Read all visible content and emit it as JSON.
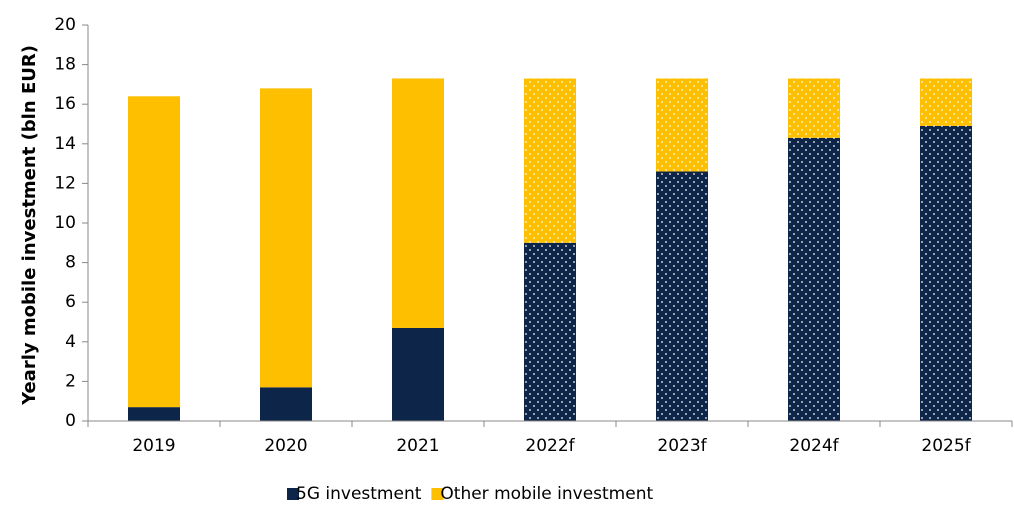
{
  "chart_data": {
    "type": "stacked_bar",
    "y_label": "Yearly mobile investment (bln EUR)",
    "categories": [
      "2019",
      "2020",
      "2021",
      "2022f",
      "2023f",
      "2024f",
      "2025f"
    ],
    "patterned": [
      false,
      false,
      false,
      true,
      true,
      true,
      true
    ],
    "series": [
      {
        "name": "5G investment",
        "color": "#0d2548",
        "values": [
          0.7,
          1.7,
          4.7,
          9.0,
          12.6,
          14.3,
          14.9
        ]
      },
      {
        "name": "Other mobile investment",
        "color": "#fdbf00",
        "values": [
          15.7,
          15.1,
          12.6,
          8.3,
          4.7,
          3.0,
          2.4
        ]
      }
    ],
    "ylim": [
      0,
      20
    ],
    "yticks": [
      0,
      2,
      4,
      6,
      8,
      10,
      12,
      14,
      16,
      18,
      20
    ],
    "grid": false,
    "legend": "bottom"
  }
}
